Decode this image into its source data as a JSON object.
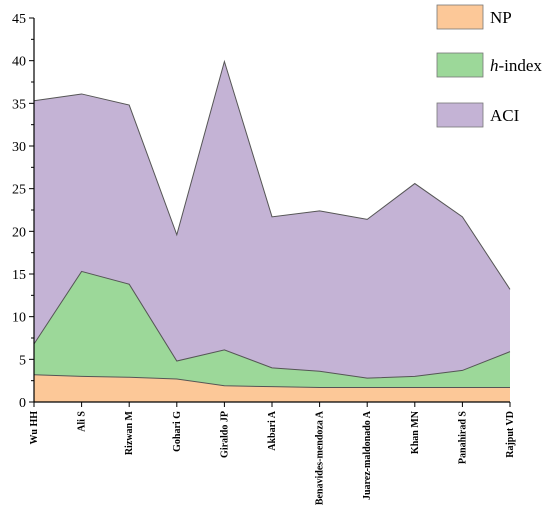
{
  "chart_data": {
    "type": "area",
    "stacked": true,
    "categories": [
      "Wu HH",
      "Ali S",
      "Rizwan M",
      "Gohari G",
      "Giraldo JP",
      "Akbari A",
      "Benavides-mendoza A",
      "Juarez-maldonado A",
      "Khan MN",
      "Panahirad S",
      "Rajput VD"
    ],
    "series": [
      {
        "name": "NP",
        "color": "#fcc898",
        "values": [
          3.2,
          3.0,
          2.9,
          2.7,
          1.9,
          1.8,
          1.7,
          1.7,
          1.7,
          1.7,
          1.7
        ]
      },
      {
        "name": "h-index",
        "color": "#9cd899",
        "values": [
          3.6,
          12.3,
          10.9,
          2.1,
          4.2,
          2.2,
          1.9,
          1.1,
          1.3,
          2.0,
          4.2
        ]
      },
      {
        "name": "ACI",
        "color": "#c4b3d5",
        "values": [
          28.5,
          20.8,
          21.0,
          14.8,
          33.8,
          17.7,
          18.8,
          18.6,
          22.6,
          18.0,
          7.3
        ]
      }
    ],
    "ylim": [
      0,
      45
    ],
    "yticks": [
      "0",
      "5",
      "10",
      "15",
      "20",
      "25",
      "30",
      "35",
      "40",
      "45"
    ],
    "legend_position": "top-right",
    "grid": false,
    "xlabel": "",
    "ylabel": "",
    "title": ""
  }
}
